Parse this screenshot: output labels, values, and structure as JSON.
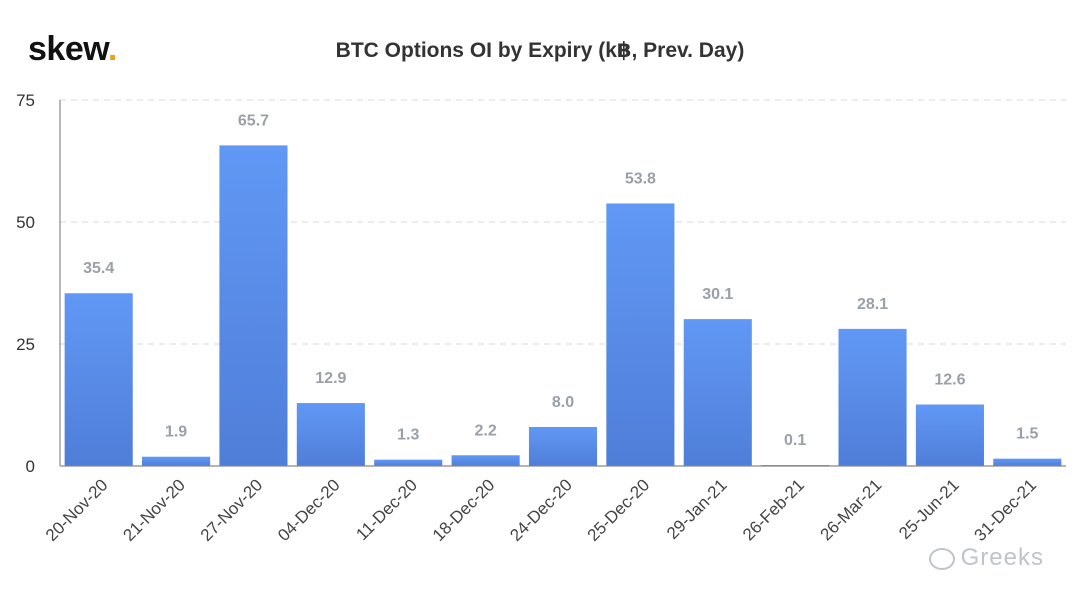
{
  "brand": {
    "name": "skew",
    "dot": "."
  },
  "watermark": {
    "icon": "wechat-icon",
    "text": "Greeks"
  },
  "colors": {
    "bar": "#5b8def",
    "bar_dark": "#4f7fe0",
    "grid": "#d8d8d8",
    "label": "#9aa0a8"
  },
  "chart_data": {
    "type": "bar",
    "title": "BTC Options OI by Expiry (k฿, Prev. Day)",
    "xlabel": "",
    "ylabel": "",
    "ylim": [
      0,
      75
    ],
    "yticks": [
      0,
      25,
      50,
      75
    ],
    "grid": true,
    "categories": [
      "20-Nov-20",
      "21-Nov-20",
      "27-Nov-20",
      "04-Dec-20",
      "11-Dec-20",
      "18-Dec-20",
      "24-Dec-20",
      "25-Dec-20",
      "29-Jan-21",
      "26-Feb-21",
      "26-Mar-21",
      "25-Jun-21",
      "31-Dec-21"
    ],
    "values": [
      35.4,
      1.9,
      65.7,
      12.9,
      1.3,
      2.2,
      8.0,
      53.8,
      30.1,
      0.1,
      28.1,
      12.6,
      1.5
    ],
    "labels": [
      "35.4",
      "1.9",
      "65.7",
      "12.9",
      "1.3",
      "2.2",
      "8.0",
      "53.8",
      "30.1",
      "0.1",
      "28.1",
      "12.6",
      "1.5"
    ]
  }
}
